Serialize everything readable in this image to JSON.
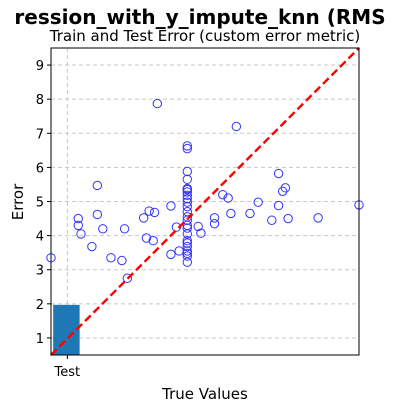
{
  "chart_data": {
    "type": "scatter",
    "title": "ression_with_y_impute_knn (RMS",
    "subtitle": "Train and Test Error (custom error metric)",
    "xlabel": "True Values",
    "ylabel": "Error",
    "xlim": [
      0,
      11.3
    ],
    "ylim": [
      0.5,
      9.5
    ],
    "x_ticks": [
      {
        "value": 0.6,
        "label": "Test"
      }
    ],
    "y_ticks": [
      1,
      2,
      3,
      4,
      5,
      6,
      7,
      8,
      9
    ],
    "grid": true,
    "colors": {
      "points": "#3333ff",
      "bar": "#1f77b4",
      "identity_line": "#ff0000",
      "grid": "#c8c8c8"
    },
    "bar": {
      "category": "Test",
      "x0": 0.08,
      "x1": 1.05,
      "value": 1.97
    },
    "identity_line": {
      "from": [
        0,
        0.5
      ],
      "to": [
        11.3,
        9.5
      ]
    },
    "points": [
      [
        0.0,
        3.35
      ],
      [
        1.0,
        4.5
      ],
      [
        1.0,
        4.3
      ],
      [
        1.1,
        4.05
      ],
      [
        1.5,
        3.68
      ],
      [
        1.7,
        5.47
      ],
      [
        1.7,
        4.62
      ],
      [
        1.9,
        4.2
      ],
      [
        2.2,
        3.35
      ],
      [
        2.6,
        3.27
      ],
      [
        2.7,
        4.2
      ],
      [
        2.8,
        2.75
      ],
      [
        3.4,
        4.52
      ],
      [
        3.5,
        3.93
      ],
      [
        3.6,
        4.72
      ],
      [
        3.75,
        3.85
      ],
      [
        3.8,
        4.68
      ],
      [
        3.9,
        7.87
      ],
      [
        4.4,
        4.87
      ],
      [
        4.4,
        3.45
      ],
      [
        4.6,
        4.25
      ],
      [
        4.7,
        3.55
      ],
      [
        5.0,
        3.22
      ],
      [
        5.0,
        3.4
      ],
      [
        5.0,
        3.48
      ],
      [
        5.0,
        3.55
      ],
      [
        5.0,
        3.68
      ],
      [
        5.0,
        3.78
      ],
      [
        5.0,
        3.85
      ],
      [
        5.0,
        4.05
      ],
      [
        5.0,
        4.22
      ],
      [
        5.0,
        4.3
      ],
      [
        5.0,
        4.45
      ],
      [
        5.0,
        4.55
      ],
      [
        5.0,
        4.7
      ],
      [
        5.0,
        4.85
      ],
      [
        5.0,
        4.98
      ],
      [
        5.0,
        5.08
      ],
      [
        5.0,
        5.18
      ],
      [
        5.0,
        5.28
      ],
      [
        5.0,
        5.35
      ],
      [
        5.0,
        5.38
      ],
      [
        5.0,
        5.65
      ],
      [
        5.0,
        5.88
      ],
      [
        5.0,
        6.55
      ],
      [
        5.0,
        6.63
      ],
      [
        5.4,
        4.27
      ],
      [
        5.5,
        4.07
      ],
      [
        6.0,
        4.35
      ],
      [
        6.0,
        4.52
      ],
      [
        6.3,
        5.2
      ],
      [
        6.5,
        5.1
      ],
      [
        6.6,
        4.65
      ],
      [
        6.8,
        7.2
      ],
      [
        7.3,
        4.65
      ],
      [
        7.6,
        4.98
      ],
      [
        8.1,
        4.45
      ],
      [
        8.35,
        4.88
      ],
      [
        8.35,
        5.82
      ],
      [
        8.5,
        5.3
      ],
      [
        8.6,
        5.4
      ],
      [
        8.7,
        4.5
      ],
      [
        9.8,
        4.52
      ],
      [
        11.3,
        4.9
      ]
    ]
  }
}
